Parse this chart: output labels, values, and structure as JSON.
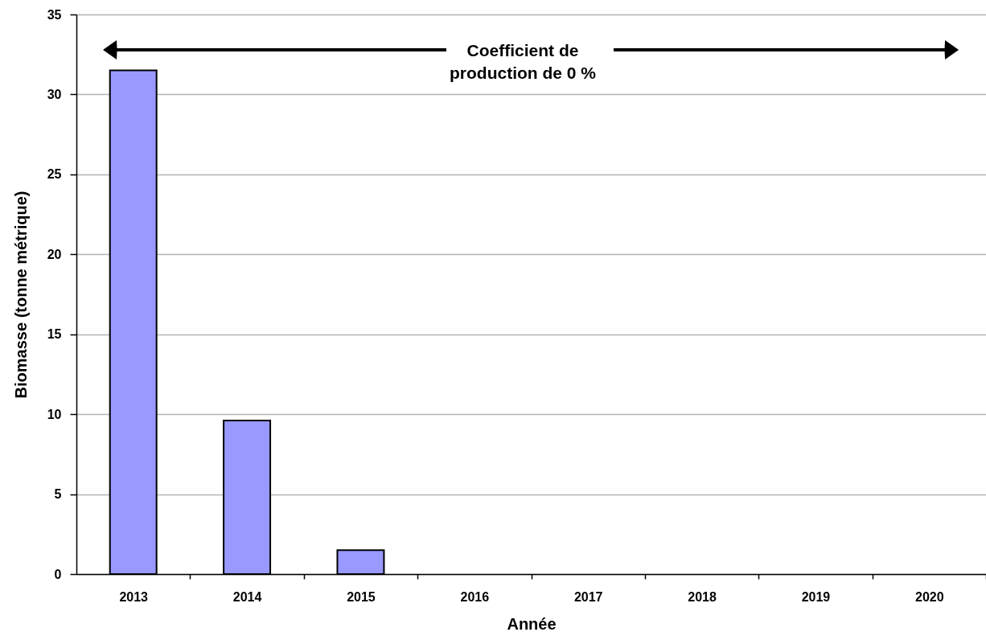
{
  "chart_data": {
    "type": "bar",
    "xlabel": "Année",
    "ylabel": "Biomasse (tonne métrique)",
    "categories": [
      "2013",
      "2014",
      "2015",
      "2016",
      "2017",
      "2018",
      "2019",
      "2020"
    ],
    "values": [
      31.5,
      9.6,
      1.5,
      null,
      null,
      null,
      null,
      null
    ],
    "color": "#9999ff",
    "ylim": [
      0,
      35
    ],
    "yticks": [
      0,
      5,
      10,
      15,
      20,
      25,
      30,
      35
    ],
    "grid": "y",
    "annotations": [
      "Coefficient de\nproduction de 0 %"
    ]
  }
}
